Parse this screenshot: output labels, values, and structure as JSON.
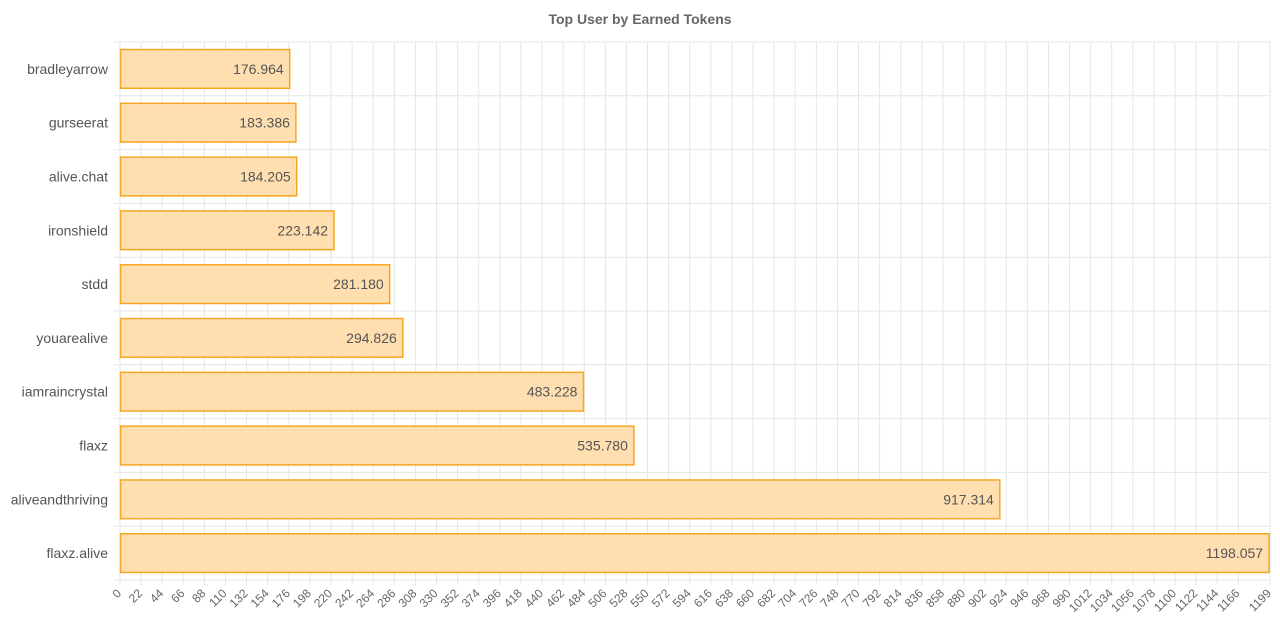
{
  "chart_data": {
    "type": "bar",
    "orientation": "horizontal",
    "title": "Top User by Earned Tokens",
    "xlabel": "",
    "ylabel": "",
    "categories": [
      "bradleyarrow",
      "gurseerat",
      "alive.chat",
      "ironshield",
      "stdd",
      "youarealive",
      "iamraincrystal",
      "flaxz",
      "aliveandthriving",
      "flaxz.alive"
    ],
    "values": [
      176.964,
      183.386,
      184.205,
      223.142,
      281.18,
      294.826,
      483.228,
      535.78,
      917.314,
      1198.057
    ],
    "value_labels": [
      "176.964",
      "183.386",
      "184.205",
      "223.142",
      "281.180",
      "294.826",
      "483.228",
      "535.780",
      "917.314",
      "1198.057"
    ],
    "xlim": [
      0,
      1199
    ],
    "x_ticks": [
      0,
      22,
      44,
      66,
      88,
      110,
      132,
      154,
      176,
      198,
      220,
      242,
      264,
      286,
      308,
      330,
      352,
      374,
      396,
      418,
      440,
      462,
      484,
      506,
      528,
      550,
      572,
      594,
      616,
      638,
      660,
      682,
      704,
      726,
      748,
      770,
      792,
      814,
      836,
      858,
      880,
      902,
      924,
      946,
      968,
      990,
      1012,
      1034,
      1056,
      1078,
      1100,
      1122,
      1144,
      1166,
      1199
    ],
    "grid": true,
    "legend": "none",
    "colors": {
      "bar_fill": "#ffdfb0",
      "bar_stroke": "#f5a623",
      "grid": "#e6e6e6"
    }
  }
}
